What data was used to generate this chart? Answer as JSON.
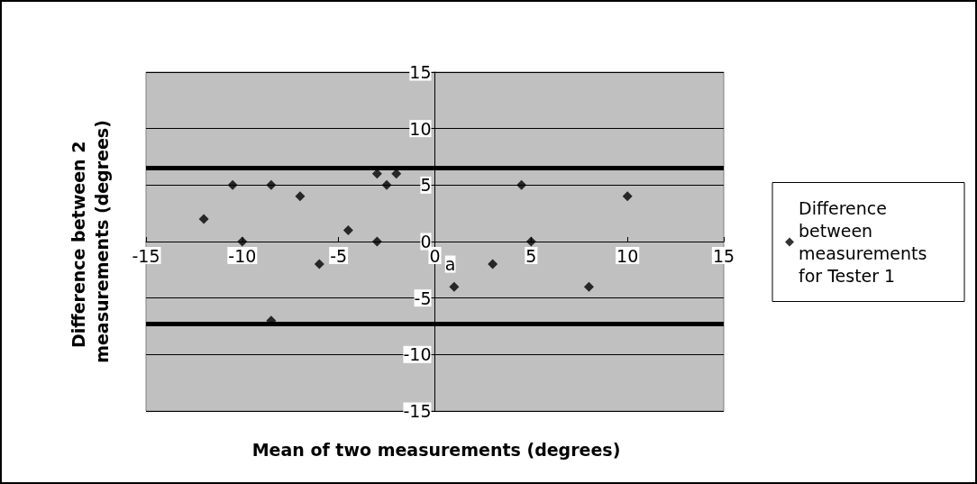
{
  "chart_data": {
    "type": "scatter",
    "xlabel": "Mean of two measurements (degrees)",
    "ylabel": "Difference between 2 measurements (degrees)",
    "x": [
      -12,
      -10.5,
      -8.5,
      -7,
      -10,
      -4.5,
      -6,
      -3,
      -3,
      -2,
      -2.5,
      -8.5,
      4.5,
      10,
      5,
      3,
      1,
      8
    ],
    "series": [
      {
        "name": "Difference between measurements for Tester 1",
        "color": "#000000",
        "values": [
          2,
          5,
          5,
          4,
          0,
          1,
          -2,
          0,
          6,
          6,
          5,
          -7,
          5,
          4,
          0,
          -2,
          -4,
          -4
        ]
      }
    ],
    "xlim": [
      -15,
      15
    ],
    "xticks": [
      -15,
      -10,
      -5,
      0,
      5,
      10,
      15
    ],
    "ylim": [
      -15,
      15
    ],
    "yticks": [
      -15,
      -10,
      -5,
      0,
      5,
      10,
      15
    ],
    "ref_lines": [
      {
        "axis": "y",
        "value": 6.5,
        "label": null,
        "color": "#000000"
      },
      {
        "axis": "y",
        "value": -7.3,
        "label": null,
        "color": "#000000"
      }
    ],
    "annotations": [
      {
        "text": "a",
        "x": 0.8,
        "y": -2
      }
    ],
    "grid": "y",
    "legend": "right",
    "marker": "diamond"
  }
}
